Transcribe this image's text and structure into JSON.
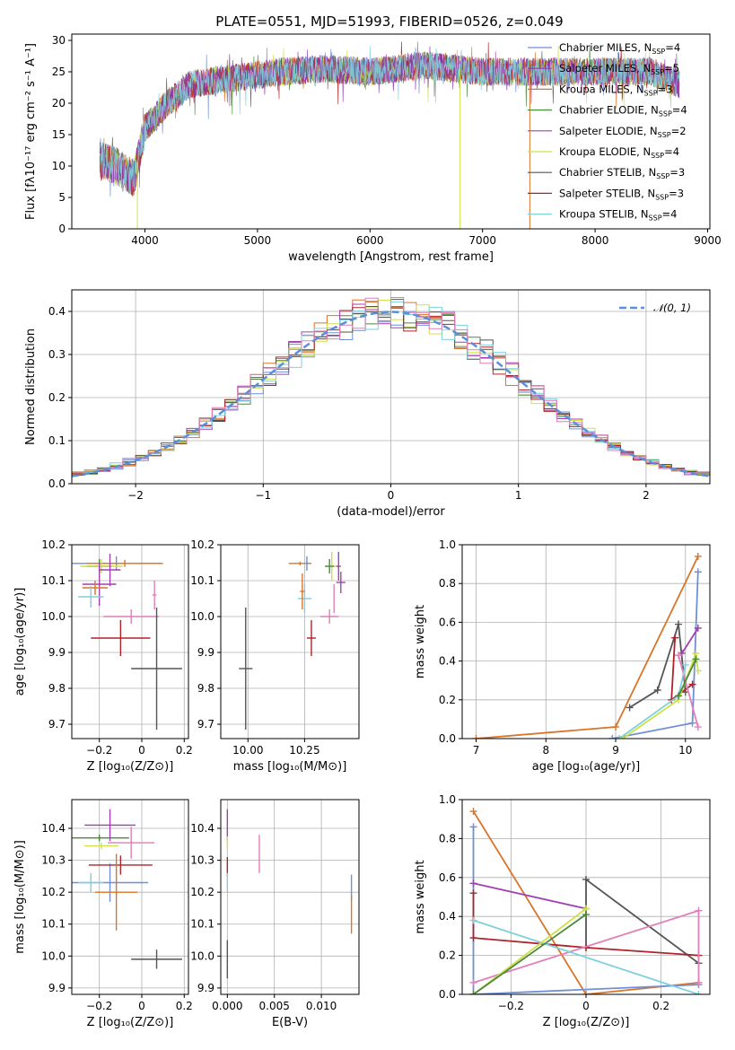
{
  "title": "PLATE=0551, MJD=51993, FIBERID=0526, z=0.049",
  "colors": {
    "chabrier_miles": "#6f8fd8",
    "salpeter_miles": "#8e3bb2",
    "kroupa_miles": "#d9752a",
    "chabrier_elodie": "#4a8a3a",
    "salpeter_elodie": "#a040b0",
    "kroupa_elodie": "#cfe04a",
    "chabrier_stelib": "#555555",
    "salpeter_stelib": "#b0222a",
    "kroupa_stelib": "#7fd0dd",
    "pink": "#e07fb8",
    "normal_curve": "#5b8fd9"
  },
  "chart_data": [
    {
      "id": "spectrum",
      "type": "line",
      "title": "PLATE=0551, MJD=51993, FIBERID=0526, z=0.049",
      "xlabel": "wavelength [Angstrom, rest frame]",
      "ylabel": "Flux [fλ10⁻¹⁷ erg cm⁻² s⁻¹ A⁻¹]",
      "xlim": [
        3350,
        9020
      ],
      "ylim": [
        0,
        31
      ],
      "xticks": [
        4000,
        5000,
        6000,
        7000,
        8000,
        9000
      ],
      "yticks": [
        0,
        5,
        10,
        15,
        20,
        25,
        30
      ],
      "grid": false,
      "legend_position": "right",
      "legend": [
        {
          "label": "Chabrier MILES, N",
          "sub": "SSP",
          "tail": "=4",
          "color": "#6f8fd8"
        },
        {
          "label": "Salpeter MILES, N",
          "sub": "SSP",
          "tail": "=5",
          "color": "#8e3bb2"
        },
        {
          "label": "Kroupa MILES, N",
          "sub": "SSP",
          "tail": "=3",
          "color": "#d9752a"
        },
        {
          "label": "Chabrier ELODIE, N",
          "sub": "SSP",
          "tail": "=4",
          "color": "#4a8a3a"
        },
        {
          "label": "Salpeter ELODIE, N",
          "sub": "SSP",
          "tail": "=2",
          "color": "#a040b0"
        },
        {
          "label": "Kroupa ELODIE, N",
          "sub": "SSP",
          "tail": "=4",
          "color": "#cfe04a"
        },
        {
          "label": "Chabrier STELIB, N",
          "sub": "SSP",
          "tail": "=3",
          "color": "#555555"
        },
        {
          "label": "Salpeter STELIB, N",
          "sub": "SSP",
          "tail": "=3",
          "color": "#b0222a"
        },
        {
          "label": "Kroupa STELIB, N",
          "sub": "SSP",
          "tail": "=4",
          "color": "#7fd0dd"
        }
      ],
      "continuum": [
        {
          "x": 3600,
          "y": 11
        },
        {
          "x": 3750,
          "y": 10
        },
        {
          "x": 3900,
          "y": 8
        },
        {
          "x": 4000,
          "y": 16
        },
        {
          "x": 4200,
          "y": 20
        },
        {
          "x": 4400,
          "y": 23
        },
        {
          "x": 4800,
          "y": 24
        },
        {
          "x": 5200,
          "y": 25
        },
        {
          "x": 5600,
          "y": 25.5
        },
        {
          "x": 6000,
          "y": 25
        },
        {
          "x": 6500,
          "y": 26
        },
        {
          "x": 7000,
          "y": 25
        },
        {
          "x": 7500,
          "y": 25
        },
        {
          "x": 8000,
          "y": 25
        },
        {
          "x": 8500,
          "y": 25
        },
        {
          "x": 8750,
          "y": 23
        }
      ],
      "dips": [
        {
          "x": 3933,
          "y": 0,
          "series": "Kroupa ELODIE"
        },
        {
          "x": 6800,
          "y": 0,
          "series": "Kroupa ELODIE"
        },
        {
          "x": 7420,
          "y": 0,
          "series": "Kroupa MILES"
        }
      ]
    },
    {
      "id": "residuals",
      "type": "line",
      "xlabel": "(data-model)/error",
      "ylabel": "Normed distribution",
      "xlim": [
        -2.5,
        2.5
      ],
      "ylim": [
        0,
        0.45
      ],
      "xticks": [
        -2,
        -1,
        0,
        1,
        2
      ],
      "yticks": [
        0.0,
        0.1,
        0.2,
        0.3,
        0.4
      ],
      "grid": true,
      "legend_position": "top-right",
      "legend": [
        {
          "label": "𝒩(0, 1)",
          "color": "#5b8fd9"
        }
      ],
      "normal": {
        "mean": 0,
        "sigma": 1
      }
    },
    {
      "id": "age_vs_Z",
      "type": "scatter",
      "xlabel": "Z [log₁₀(Z/Z⊙)]",
      "ylabel": "age  [log₁₀(age/yr)]",
      "xlim": [
        -0.33,
        0.22
      ],
      "ylim": [
        9.66,
        10.2
      ],
      "xticks": [
        -0.2,
        0.0,
        0.2
      ],
      "yticks": [
        9.7,
        9.8,
        9.9,
        10.0,
        10.1,
        10.2
      ],
      "grid": true,
      "points": [
        {
          "x": -0.12,
          "y": 10.148,
          "xerr": 0.21,
          "yerr": 0.02,
          "color": "#6f8fd8"
        },
        {
          "x": -0.08,
          "y": 10.148,
          "xerr": 0.18,
          "yerr": 0.01,
          "color": "#d9752a"
        },
        {
          "x": -0.2,
          "y": 10.14,
          "xerr": 0.06,
          "yerr": 0.02,
          "color": "#4a8a3a"
        },
        {
          "x": -0.19,
          "y": 10.14,
          "xerr": 0.1,
          "yerr": 0.02,
          "color": "#cfe04a"
        },
        {
          "x": -0.15,
          "y": 10.13,
          "xerr": 0.05,
          "yerr": 0.045,
          "color": "#a040b0"
        },
        {
          "x": -0.2,
          "y": 10.09,
          "xerr": 0.08,
          "yerr": 0.06,
          "color": "#a040b0"
        },
        {
          "x": -0.22,
          "y": 10.08,
          "xerr": 0.06,
          "yerr": 0.02,
          "color": "#d9752a"
        },
        {
          "x": -0.24,
          "y": 10.055,
          "xerr": 0.06,
          "yerr": 0.03,
          "color": "#7fd0dd"
        },
        {
          "x": 0.06,
          "y": 10.06,
          "xerr": 0.01,
          "yerr": 0.04,
          "color": "#e07fb8"
        },
        {
          "x": -0.05,
          "y": 10.0,
          "xerr": 0.13,
          "yerr": 0.02,
          "color": "#e07fb8"
        },
        {
          "x": -0.1,
          "y": 9.94,
          "xerr": 0.14,
          "yerr": 0.05,
          "color": "#b0222a"
        },
        {
          "x": 0.07,
          "y": 9.855,
          "xerr": 0.12,
          "yerr": 0.17,
          "color": "#555555"
        }
      ]
    },
    {
      "id": "age_vs_mass",
      "type": "scatter",
      "xlabel": "mass [log₁₀(M/M⊙)]",
      "xlim": [
        9.88,
        10.49
      ],
      "ylim": [
        9.66,
        10.2
      ],
      "xticks": [
        10.0,
        10.25
      ],
      "xtick_labels": [
        "10.00",
        "10.25"
      ],
      "yticks": [
        9.7,
        9.8,
        9.9,
        10.0,
        10.1,
        10.2
      ],
      "grid": true,
      "points": [
        {
          "x": 10.23,
          "y": 10.148,
          "xerr": 0.05,
          "yerr": 0.005,
          "color": "#d9752a"
        },
        {
          "x": 10.26,
          "y": 10.148,
          "xerr": 0.01,
          "yerr": 0.02,
          "color": "#6f8fd8"
        },
        {
          "x": 10.37,
          "y": 10.14,
          "xerr": 0.03,
          "yerr": 0.04,
          "color": "#cfe04a"
        },
        {
          "x": 10.36,
          "y": 10.14,
          "xerr": 0.02,
          "yerr": 0.02,
          "color": "#4a8a3a"
        },
        {
          "x": 10.41,
          "y": 10.095,
          "xerr": 0.02,
          "yerr": 0.03,
          "color": "#a040b0"
        },
        {
          "x": 10.4,
          "y": 10.14,
          "xerr": 0.01,
          "yerr": 0.04,
          "color": "#a040b0"
        },
        {
          "x": 10.25,
          "y": 10.05,
          "xerr": 0.03,
          "yerr": 0.04,
          "color": "#7fd0dd"
        },
        {
          "x": 10.24,
          "y": 10.07,
          "xerr": 0.01,
          "yerr": 0.05,
          "color": "#d9752a"
        },
        {
          "x": 10.36,
          "y": 10.0,
          "xerr": 0.04,
          "yerr": 0.02,
          "color": "#e07fb8"
        },
        {
          "x": 10.38,
          "y": 10.05,
          "xerr": 0.0,
          "yerr": 0.04,
          "color": "#e07fb8"
        },
        {
          "x": 10.28,
          "y": 9.94,
          "xerr": 0.02,
          "yerr": 0.05,
          "color": "#b0222a"
        },
        {
          "x": 9.99,
          "y": 9.855,
          "xerr": 0.03,
          "yerr": 0.17,
          "color": "#555555"
        }
      ]
    },
    {
      "id": "weight_vs_age",
      "type": "line",
      "xlabel": "age  [log₁₀(age/yr)]",
      "ylabel": "mass weight",
      "xlim": [
        6.8,
        10.35
      ],
      "ylim": [
        0,
        1.0
      ],
      "xticks": [
        7,
        8,
        9,
        10
      ],
      "yticks": [
        0.0,
        0.2,
        0.4,
        0.6,
        0.8,
        1.0
      ],
      "grid": true,
      "series": [
        {
          "color": "#d9752a",
          "points": [
            [
              7.0,
              0.0
            ],
            [
              9.0,
              0.06
            ],
            [
              10.18,
              0.94
            ]
          ]
        },
        {
          "color": "#6f8fd8",
          "points": [
            [
              8.95,
              0.0
            ],
            [
              10.1,
              0.08
            ],
            [
              10.18,
              0.86
            ]
          ]
        },
        {
          "color": "#555555",
          "points": [
            [
              9.2,
              0.16
            ],
            [
              9.6,
              0.25
            ],
            [
              9.9,
              0.59
            ],
            [
              10.0,
              0.24
            ]
          ]
        },
        {
          "color": "#a040b0",
          "points": [
            [
              9.95,
              0.44
            ],
            [
              10.18,
              0.57
            ]
          ]
        },
        {
          "color": "#b0222a",
          "points": [
            [
              9.85,
              0.52
            ],
            [
              9.8,
              0.2
            ],
            [
              10.1,
              0.28
            ]
          ]
        },
        {
          "color": "#e07fb8",
          "points": [
            [
              9.9,
              0.43
            ],
            [
              10.18,
              0.06
            ]
          ]
        },
        {
          "color": "#7fd0dd",
          "points": [
            [
              9.05,
              0.0
            ],
            [
              9.9,
              0.22
            ],
            [
              10.0,
              0.38
            ]
          ]
        },
        {
          "color": "#cfe04a",
          "points": [
            [
              9.1,
              0.0
            ],
            [
              9.9,
              0.2
            ],
            [
              10.15,
              0.44
            ],
            [
              10.18,
              0.35
            ]
          ]
        },
        {
          "color": "#4a8a3a",
          "points": [
            [
              9.9,
              0.22
            ],
            [
              10.15,
              0.41
            ]
          ]
        }
      ]
    },
    {
      "id": "mass_vs_Z",
      "type": "scatter",
      "xlabel": "Z [log₁₀(Z/Z⊙)]",
      "ylabel": "mass [log₁₀(M/M⊙)]",
      "xlim": [
        -0.33,
        0.22
      ],
      "ylim": [
        9.88,
        10.49
      ],
      "xticks": [
        -0.2,
        0.0,
        0.2
      ],
      "yticks": [
        9.9,
        10.0,
        10.1,
        10.2,
        10.3,
        10.4
      ],
      "grid": true,
      "points": [
        {
          "x": -0.15,
          "y": 10.41,
          "xerr": 0.12,
          "yerr": 0.05,
          "color": "#a040b0"
        },
        {
          "x": -0.2,
          "y": 10.37,
          "xerr": 0.14,
          "yerr": 0.01,
          "color": "#4a8a3a"
        },
        {
          "x": -0.19,
          "y": 10.345,
          "xerr": 0.08,
          "yerr": 0.01,
          "color": "#cfe04a"
        },
        {
          "x": -0.05,
          "y": 10.355,
          "xerr": 0.11,
          "yerr": 0.05,
          "color": "#e07fb8"
        },
        {
          "x": -0.15,
          "y": 10.23,
          "xerr": 0.18,
          "yerr": 0.06,
          "color": "#6f8fd8"
        },
        {
          "x": -0.1,
          "y": 10.285,
          "xerr": 0.15,
          "yerr": 0.03,
          "color": "#b0222a"
        },
        {
          "x": -0.24,
          "y": 10.23,
          "xerr": 0.06,
          "yerr": 0.03,
          "color": "#7fd0dd"
        },
        {
          "x": -0.12,
          "y": 10.2,
          "xerr": 0.1,
          "yerr": 0.12,
          "color": "#d9752a"
        },
        {
          "x": 0.07,
          "y": 9.99,
          "xerr": 0.12,
          "yerr": 0.03,
          "color": "#555555"
        }
      ]
    },
    {
      "id": "mass_vs_EBV",
      "type": "scatter",
      "xlabel": "E(B-V)",
      "xlim": [
        -0.0007,
        0.014
      ],
      "ylim": [
        9.88,
        10.49
      ],
      "xticks": [
        0.0,
        0.005,
        0.01
      ],
      "xtick_labels": [
        "0.000",
        "0.005",
        "0.010"
      ],
      "yticks": [
        9.9,
        10.0,
        10.1,
        10.2,
        10.3,
        10.4
      ],
      "grid": true,
      "points": [
        {
          "x": 0.0,
          "y": 10.41,
          "xerr": 0.0,
          "yerr": 0.05,
          "color": "#a040b0"
        },
        {
          "x": 0.0,
          "y": 10.355,
          "xerr": 0.0,
          "yerr": 0.02,
          "color": "#cfe04a"
        },
        {
          "x": 0.0,
          "y": 10.28,
          "xerr": 0.0,
          "yerr": 0.03,
          "color": "#b0222a"
        },
        {
          "x": 0.0,
          "y": 10.23,
          "xerr": 0.0,
          "yerr": 0.03,
          "color": "#7fd0dd"
        },
        {
          "x": 0.0,
          "y": 9.99,
          "xerr": 0.0,
          "yerr": 0.06,
          "color": "#555555"
        },
        {
          "x": 0.0034,
          "y": 10.32,
          "xerr": 0.0,
          "yerr": 0.06,
          "color": "#e07fb8"
        },
        {
          "x": 0.0132,
          "y": 10.215,
          "xerr": 0.0,
          "yerr": 0.04,
          "color": "#6f8fd8"
        },
        {
          "x": 0.0132,
          "y": 10.13,
          "xerr": 0.0,
          "yerr": 0.06,
          "color": "#d9752a"
        }
      ]
    },
    {
      "id": "weight_vs_Z",
      "type": "line",
      "xlabel": "Z [log₁₀(Z/Z⊙)]",
      "ylabel": "mass weight",
      "xlim": [
        -0.33,
        0.33
      ],
      "ylim": [
        0,
        1.0
      ],
      "xticks": [
        -0.2,
        0.0,
        0.2
      ],
      "yticks": [
        0.0,
        0.2,
        0.4,
        0.6,
        0.8,
        1.0
      ],
      "grid": true,
      "series": [
        {
          "color": "#d9752a",
          "points": [
            [
              -0.3,
              0.94
            ],
            [
              0.0,
              0.0
            ],
            [
              0.3,
              0.06
            ]
          ]
        },
        {
          "color": "#6f8fd8",
          "points": [
            [
              -0.3,
              0.86
            ],
            [
              -0.3,
              0.0
            ],
            [
              0.3,
              0.05
            ]
          ]
        },
        {
          "color": "#555555",
          "points": [
            [
              0.0,
              0.24
            ],
            [
              0.0,
              0.59
            ],
            [
              0.3,
              0.16
            ]
          ]
        },
        {
          "color": "#a040b0",
          "points": [
            [
              -0.3,
              0.57
            ],
            [
              0.0,
              0.44
            ]
          ]
        },
        {
          "color": "#b0222a",
          "points": [
            [
              -0.3,
              0.52
            ],
            [
              -0.3,
              0.29
            ],
            [
              0.0,
              0.24
            ],
            [
              0.3,
              0.2
            ]
          ]
        },
        {
          "color": "#e07fb8",
          "points": [
            [
              -0.3,
              0.06
            ],
            [
              0.3,
              0.43
            ],
            [
              0.3,
              0.06
            ]
          ]
        },
        {
          "color": "#7fd0dd",
          "points": [
            [
              -0.3,
              0.38
            ],
            [
              0.3,
              0.0
            ]
          ]
        },
        {
          "color": "#cfe04a",
          "points": [
            [
              -0.3,
              0.0
            ],
            [
              0.0,
              0.44
            ],
            [
              -0.3,
              0.0
            ]
          ]
        },
        {
          "color": "#4a8a3a",
          "points": [
            [
              -0.3,
              0.0
            ],
            [
              0.0,
              0.41
            ]
          ]
        }
      ]
    }
  ]
}
